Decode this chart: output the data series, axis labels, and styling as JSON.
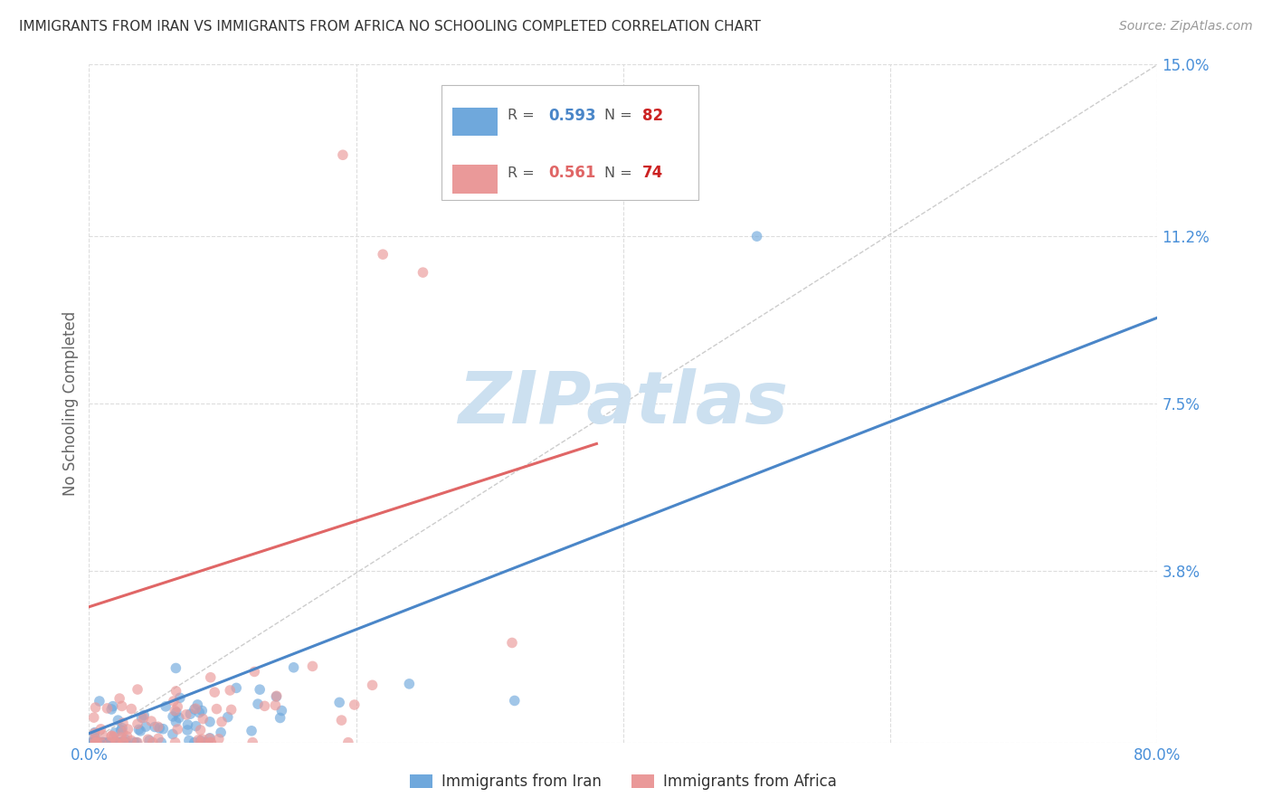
{
  "title": "IMMIGRANTS FROM IRAN VS IMMIGRANTS FROM AFRICA NO SCHOOLING COMPLETED CORRELATION CHART",
  "source": "Source: ZipAtlas.com",
  "ylabel": "No Schooling Completed",
  "xlim": [
    0.0,
    0.8
  ],
  "ylim": [
    0.0,
    0.15
  ],
  "iran_R": 0.593,
  "iran_N": 82,
  "africa_R": 0.561,
  "africa_N": 74,
  "iran_color": "#6fa8dc",
  "africa_color": "#ea9999",
  "iran_line_color": "#4a86c8",
  "africa_line_color": "#e06666",
  "diagonal_line_color": "#c0c0c0",
  "background_color": "#ffffff",
  "grid_color": "#dddddd",
  "watermark_color": "#cce0f0",
  "title_color": "#333333",
  "source_color": "#999999",
  "tick_label_color": "#4a90d9",
  "ylabel_color": "#666666",
  "y_ticks": [
    0.0,
    0.038,
    0.075,
    0.112,
    0.15
  ],
  "y_tick_labels": [
    "",
    "3.8%",
    "7.5%",
    "11.2%",
    "15.0%"
  ],
  "x_tick_positions": [
    0.0,
    0.8
  ],
  "x_tick_labels": [
    "0.0%",
    "80.0%"
  ]
}
